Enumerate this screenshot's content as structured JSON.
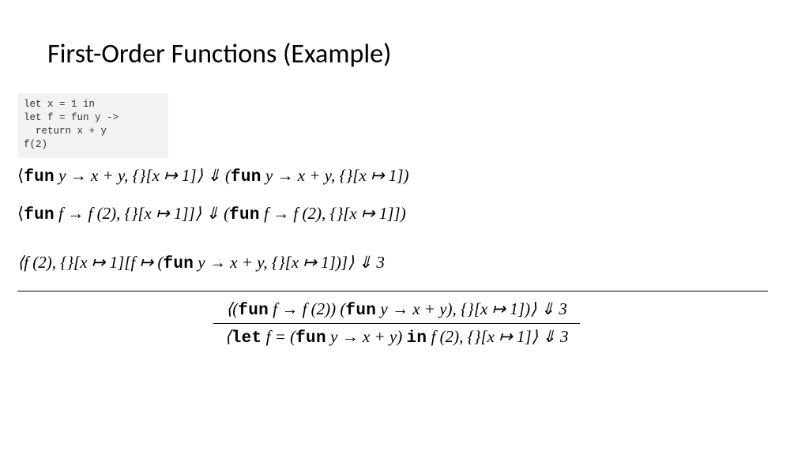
{
  "title": "First-Order Functions (Example)",
  "code": {
    "line1": "let x = 1 in",
    "line2": "let f = fun y ->",
    "line3": "  return x + y",
    "line4": "f(2)"
  },
  "math": {
    "line1_left_open": "⟨",
    "kw_fun": "fun",
    "kw_let": "let",
    "kw_in": "in",
    "line1_a": " y → x + y, {}[x ↦ 1]⟩ ⇓ (",
    "line1_b": " y → x + y, {}[x ↦ 1])",
    "line2_a": " f  → f (2), {}[x ↦ 1]]⟩ ⇓ (",
    "line2_b": " f  → f (2), {}[x ↦ 1]])",
    "line3_a": "⟨f (2), {}[x ↦ 1][f ↦ (",
    "line3_b": " y → x + y, {}[x ↦ 1])]⟩ ⇓ 3",
    "frac_num_a": "⟨(",
    "frac_num_b": " f  → f (2)) (",
    "frac_num_c": " y → x + y), {}[x ↦ 1])⟩ ⇓ 3",
    "frac_den_a": "⟨",
    "frac_den_b": " f = (",
    "frac_den_c": " y → x + y) ",
    "frac_den_d": " f (2), {}[x ↦ 1]⟩ ⇓ 3"
  },
  "style": {
    "background": "#ffffff",
    "code_bg": "#f2f2f2",
    "title_fontsize": 34,
    "math_fontsize": 21,
    "code_fontsize": 12.5
  }
}
